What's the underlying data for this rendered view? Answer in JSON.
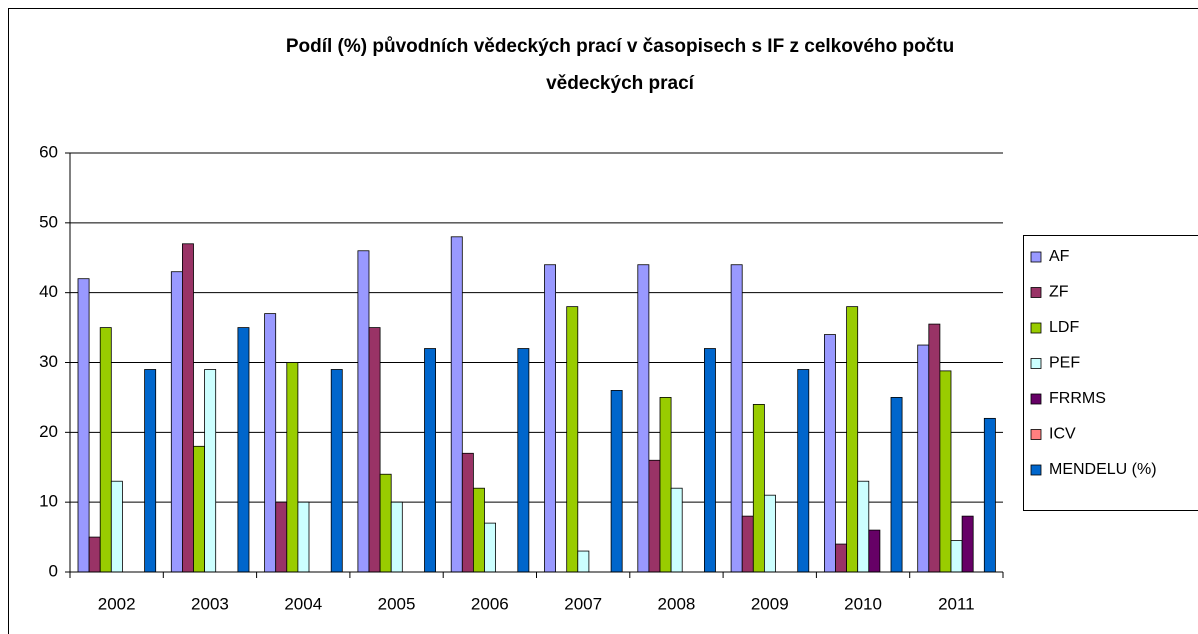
{
  "chart_data": {
    "type": "bar",
    "title": [
      "Podíl (%) původních vědeckých prací v časopisech s IF z celkového počtu",
      "vědeckých prací"
    ],
    "categories": [
      "2002",
      "2003",
      "2004",
      "2005",
      "2006",
      "2007",
      "2008",
      "2009",
      "2010",
      "2011"
    ],
    "series": [
      {
        "name": "AF",
        "color": "#9999ff",
        "values": [
          42,
          43,
          37,
          46,
          48,
          44,
          44,
          44,
          34,
          32.5
        ]
      },
      {
        "name": "ZF",
        "color": "#993366",
        "values": [
          5,
          47,
          10,
          35,
          17,
          null,
          16,
          8,
          4,
          35.5
        ]
      },
      {
        "name": "LDF",
        "color": "#99cc00",
        "values": [
          35,
          18,
          30,
          14,
          12,
          38,
          25,
          24,
          38,
          28.8
        ]
      },
      {
        "name": "PEF",
        "color": "#ccffff",
        "values": [
          13,
          29,
          10,
          10,
          7,
          3,
          12,
          11,
          13,
          4.5
        ]
      },
      {
        "name": "FRRMS",
        "color": "#660066",
        "values": [
          null,
          null,
          null,
          null,
          null,
          null,
          null,
          null,
          6,
          8
        ]
      },
      {
        "name": "ICV",
        "color": "#ff8080",
        "values": [
          null,
          null,
          null,
          null,
          null,
          null,
          null,
          null,
          null,
          null
        ]
      },
      {
        "name": "MENDELU (%)",
        "color": "#0066cc",
        "values": [
          29,
          35,
          29,
          32,
          32,
          26,
          32,
          29,
          25,
          22
        ]
      }
    ],
    "ylim": [
      0,
      60
    ],
    "yticks": [
      0,
      10,
      20,
      30,
      40,
      50,
      60
    ],
    "grid": true,
    "legend": "right"
  }
}
